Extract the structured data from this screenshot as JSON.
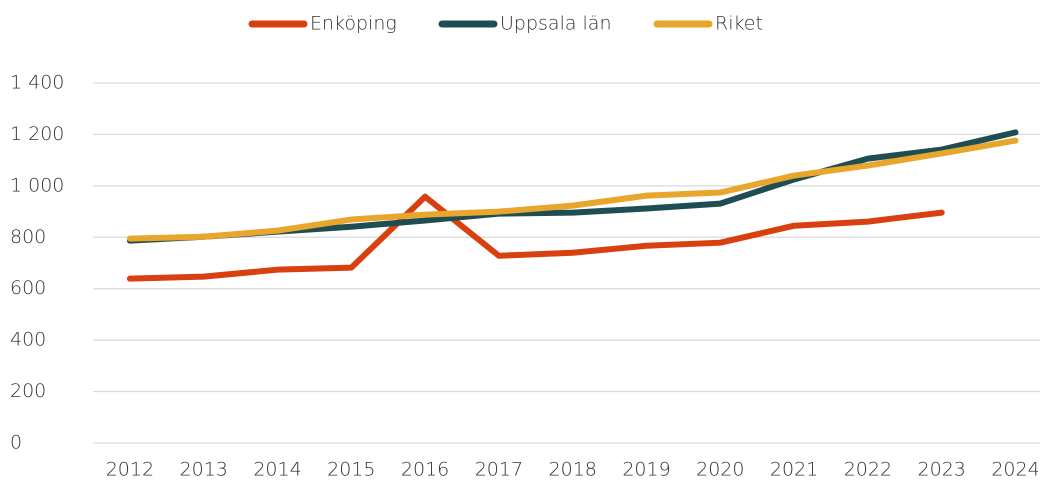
{
  "chart_data": {
    "type": "line",
    "categories": [
      "2012",
      "2013",
      "2014",
      "2015",
      "2016",
      "2017",
      "2018",
      "2019",
      "2020",
      "2021",
      "2022",
      "2023",
      "2024"
    ],
    "series": [
      {
        "name": "Enköping",
        "color": "#d9400f",
        "values": [
          639,
          647,
          674,
          682,
          958,
          728,
          740,
          767,
          779,
          845,
          861,
          896,
          null
        ]
      },
      {
        "name": "Uppsala län",
        "color": "#1f4e52",
        "values": [
          787,
          802,
          822,
          841,
          865,
          892,
          896,
          912,
          931,
          1025,
          1106,
          1141,
          1208
        ]
      },
      {
        "name": "Riket",
        "color": "#e8a62c",
        "values": [
          795,
          802,
          826,
          869,
          888,
          900,
          923,
          962,
          974,
          1040,
          1079,
          1126,
          1176
        ]
      }
    ],
    "ylim": [
      0,
      1400
    ],
    "yticks": [
      0,
      200,
      400,
      600,
      800,
      {
        "value": 1000,
        "label": "1 000"
      },
      {
        "value": 1200,
        "label": "1 200"
      },
      {
        "value": 1400,
        "label": "1 400"
      }
    ],
    "grid": true,
    "legend": "top"
  }
}
